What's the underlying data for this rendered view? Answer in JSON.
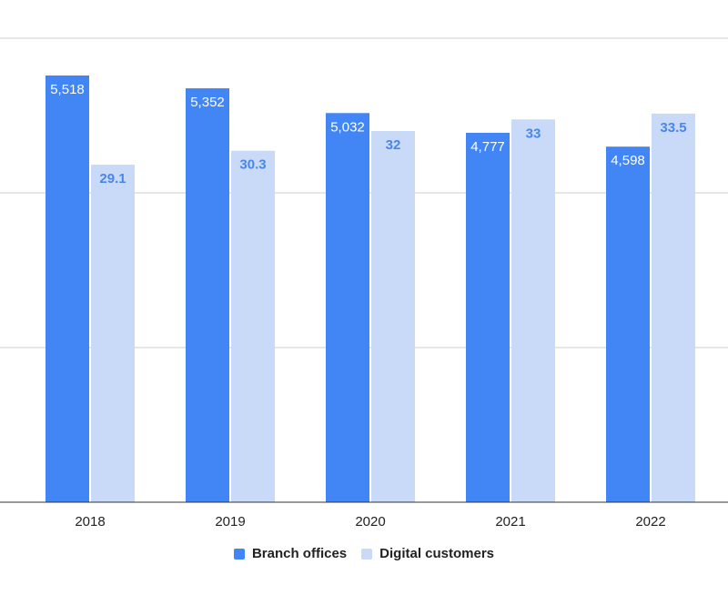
{
  "chart_data": {
    "type": "bar",
    "title": "",
    "xlabel": "",
    "ylabel": "",
    "categories": [
      "2018",
      "2019",
      "2020",
      "2021",
      "2022"
    ],
    "series": [
      {
        "name": "Branch offices",
        "values": [
          5518,
          5352,
          5032,
          4777,
          4598
        ],
        "labels": [
          "5,518",
          "5,352",
          "5,032",
          "4,777",
          "4,598"
        ],
        "color": "#4285f4",
        "axis": "left"
      },
      {
        "name": "Digital customers",
        "values": [
          29.1,
          30.3,
          32,
          33,
          33.5
        ],
        "labels": [
          "29.1",
          "30.3",
          "32",
          "33",
          "33.5"
        ],
        "color": "#c9daf8",
        "axis": "right"
      }
    ],
    "ylim_left": [
      0,
      6000
    ],
    "ylim_right": [
      0,
      40
    ],
    "grid": true,
    "legend_position": "bottom"
  }
}
